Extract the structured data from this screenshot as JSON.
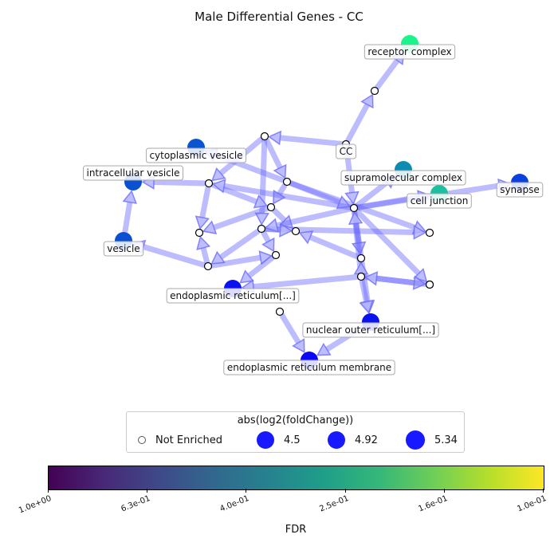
{
  "title": "Male Differential Genes - CC",
  "nodes": [
    {
      "id": "receptor_complex",
      "label": "receptor complex",
      "color": "#19f58a",
      "kind": "enriched"
    },
    {
      "id": "n_rc_mid",
      "kind": "plain"
    },
    {
      "id": "cc",
      "label": "CC",
      "kind": "plain"
    },
    {
      "id": "cytoplasmic_vesicle",
      "label": "cytoplasmic vesicle",
      "color": "#0a55cf",
      "kind": "enriched"
    },
    {
      "id": "intracellular_vesicle",
      "label": "intracellular vesicle",
      "color": "#0a50d2",
      "kind": "enriched"
    },
    {
      "id": "vesicle",
      "label": "vesicle",
      "color": "#0a50d2",
      "kind": "enriched"
    },
    {
      "id": "supramolecular_complex",
      "label": "supramolecular complex",
      "color": "#0d8bb0",
      "kind": "enriched"
    },
    {
      "id": "cell_junction",
      "label": "cell junction",
      "color": "#1bc0a0",
      "kind": "enriched"
    },
    {
      "id": "synapse",
      "label": "synapse",
      "color": "#0a3fe0",
      "kind": "enriched"
    },
    {
      "id": "endoplasmic_reticulum",
      "label": "endoplasmic reticulum[...]",
      "color": "#0a10f0",
      "kind": "enriched"
    },
    {
      "id": "nuclear_outer_reticulum",
      "label": "nuclear outer reticulum[...]",
      "color": "#0a12f0",
      "kind": "enriched"
    },
    {
      "id": "er_membrane",
      "label": "endoplasmic reticulum membrane",
      "color": "#0a08f5",
      "kind": "enriched"
    },
    {
      "id": "n1",
      "kind": "plain"
    },
    {
      "id": "n2",
      "kind": "plain"
    },
    {
      "id": "n3",
      "kind": "plain"
    },
    {
      "id": "n4",
      "kind": "plain"
    },
    {
      "id": "n5",
      "kind": "plain"
    },
    {
      "id": "n6",
      "kind": "plain"
    },
    {
      "id": "n7",
      "kind": "plain"
    },
    {
      "id": "n8",
      "kind": "plain"
    },
    {
      "id": "n9",
      "kind": "plain"
    },
    {
      "id": "n10",
      "kind": "plain"
    },
    {
      "id": "hub",
      "kind": "plain"
    },
    {
      "id": "n11",
      "kind": "plain"
    },
    {
      "id": "n12",
      "kind": "plain"
    },
    {
      "id": "n13",
      "kind": "plain"
    },
    {
      "id": "n14",
      "kind": "plain"
    },
    {
      "id": "n15",
      "kind": "plain"
    }
  ],
  "edges": [
    [
      "n_rc_mid",
      "receptor_complex"
    ],
    [
      "cc",
      "n_rc_mid"
    ],
    [
      "cc",
      "n1"
    ],
    [
      "cc",
      "hub"
    ],
    [
      "n1",
      "n3"
    ],
    [
      "n1",
      "n2"
    ],
    [
      "n1",
      "n6"
    ],
    [
      "n2",
      "intracellular_vesicle"
    ],
    [
      "n2",
      "n4"
    ],
    [
      "n2",
      "n5"
    ],
    [
      "n3",
      "cytoplasmic_vesicle"
    ],
    [
      "n3",
      "n4"
    ],
    [
      "n3",
      "n10"
    ],
    [
      "n3",
      "hub"
    ],
    [
      "n4",
      "n5"
    ],
    [
      "n4",
      "n7"
    ],
    [
      "vesicle",
      "intracellular_vesicle"
    ],
    [
      "n8",
      "vesicle"
    ],
    [
      "n8",
      "n9"
    ],
    [
      "n8",
      "n5"
    ],
    [
      "n6",
      "n10"
    ],
    [
      "n6",
      "n8"
    ],
    [
      "n6",
      "n9"
    ],
    [
      "n6",
      "n7"
    ],
    [
      "hub",
      "n2"
    ],
    [
      "hub",
      "n6"
    ],
    [
      "hub",
      "n11"
    ],
    [
      "hub",
      "n13"
    ],
    [
      "hub",
      "nuclear_outer_reticulum"
    ],
    [
      "hub",
      "supramolecular_complex"
    ],
    [
      "hub",
      "synapse"
    ],
    [
      "hub",
      "cell_junction"
    ],
    [
      "n11",
      "n7"
    ],
    [
      "n12",
      "hub"
    ],
    [
      "n12",
      "n14"
    ],
    [
      "n12",
      "n11"
    ],
    [
      "n12",
      "endoplasmic_reticulum"
    ],
    [
      "n12",
      "nuclear_outer_reticulum"
    ],
    [
      "n13",
      "n14"
    ],
    [
      "n14",
      "n12"
    ],
    [
      "n9",
      "endoplasmic_reticulum"
    ],
    [
      "n15",
      "er_membrane"
    ],
    [
      "nuclear_outer_reticulum",
      "er_membrane"
    ]
  ],
  "legend": {
    "title": "abs(log2(foldChange))",
    "items": [
      {
        "label": "Not Enriched",
        "kind": "open"
      },
      {
        "label": "4.5",
        "kind": "filled"
      },
      {
        "label": "4.92",
        "kind": "filled"
      },
      {
        "label": "5.34",
        "kind": "filled"
      }
    ],
    "color": "#0000ff"
  },
  "colorbar": {
    "label": "FDR",
    "ticks": [
      "1.0e+00",
      "6.3e-01",
      "4.0e-01",
      "2.5e-01",
      "1.6e-01",
      "1.0e-01"
    ]
  }
}
